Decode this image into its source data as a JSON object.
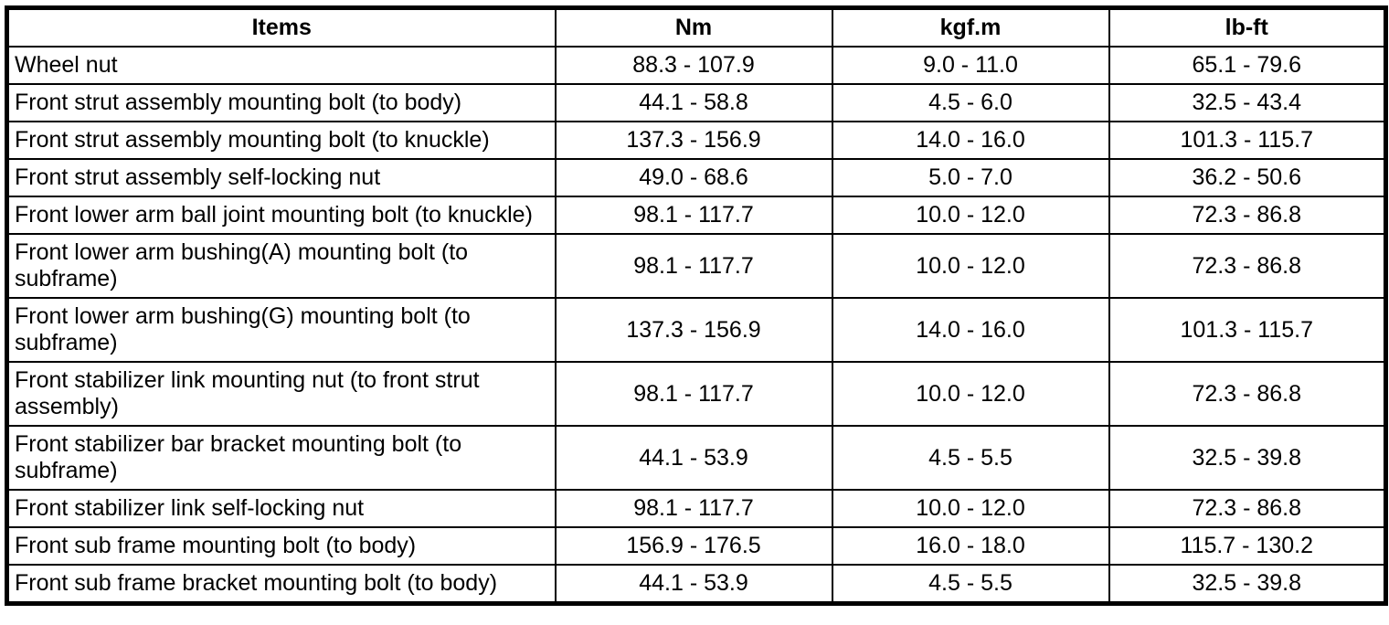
{
  "table": {
    "columns": [
      {
        "label": "Items"
      },
      {
        "label": "Nm"
      },
      {
        "label": "kgf.m"
      },
      {
        "label": "lb-ft"
      }
    ],
    "rows": [
      {
        "item": "Wheel nut",
        "nm": "88.3 - 107.9",
        "kgfm": "9.0 - 11.0",
        "lbft": "65.1 - 79.6"
      },
      {
        "item": "Front strut assembly mounting bolt (to body)",
        "nm": "44.1 - 58.8",
        "kgfm": "4.5 - 6.0",
        "lbft": "32.5 - 43.4"
      },
      {
        "item": "Front strut assembly mounting bolt (to knuckle)",
        "nm": "137.3 - 156.9",
        "kgfm": "14.0 - 16.0",
        "lbft": "101.3 - 115.7"
      },
      {
        "item": "Front strut assembly self-locking nut",
        "nm": "49.0 - 68.6",
        "kgfm": "5.0 - 7.0",
        "lbft": "36.2 - 50.6"
      },
      {
        "item": "Front lower arm ball joint mounting bolt (to knuckle)",
        "nm": "98.1 - 117.7",
        "kgfm": "10.0 - 12.0",
        "lbft": "72.3 - 86.8"
      },
      {
        "item": "Front lower arm bushing(A) mounting bolt (to subframe)",
        "nm": "98.1 - 117.7",
        "kgfm": "10.0 - 12.0",
        "lbft": "72.3 - 86.8"
      },
      {
        "item": "Front lower arm bushing(G) mounting bolt (to subframe)",
        "nm": "137.3 - 156.9",
        "kgfm": "14.0 - 16.0",
        "lbft": "101.3 - 115.7"
      },
      {
        "item": "Front stabilizer link mounting nut (to front strut assembly)",
        "nm": "98.1 - 117.7",
        "kgfm": "10.0 - 12.0",
        "lbft": "72.3 - 86.8"
      },
      {
        "item": "Front stabilizer bar bracket mounting bolt (to subframe)",
        "nm": "44.1 - 53.9",
        "kgfm": "4.5 - 5.5",
        "lbft": "32.5 - 39.8"
      },
      {
        "item": "Front stabilizer link self-locking nut",
        "nm": "98.1 - 117.7",
        "kgfm": "10.0 - 12.0",
        "lbft": "72.3 - 86.8"
      },
      {
        "item": "Front sub frame mounting bolt (to body)",
        "nm": "156.9 - 176.5",
        "kgfm": "16.0 - 18.0",
        "lbft": "115.7 - 130.2"
      },
      {
        "item": "Front sub frame bracket mounting bolt (to body)",
        "nm": "44.1 - 53.9",
        "kgfm": "4.5 - 5.5",
        "lbft": "32.5 - 39.8"
      }
    ],
    "border_color": "#000000",
    "background_color": "#ffffff",
    "text_color": "#000000"
  }
}
